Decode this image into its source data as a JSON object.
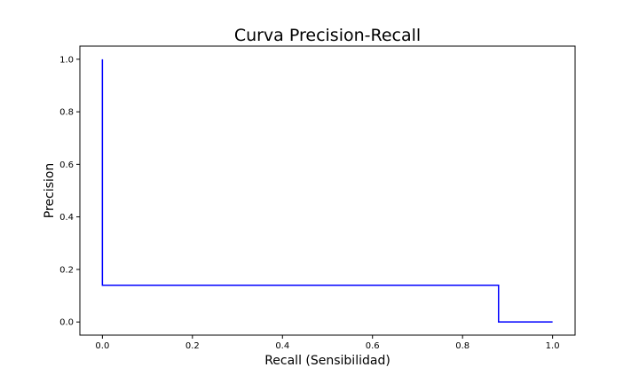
{
  "chart_data": {
    "type": "line",
    "title": "Curva Precision-Recall",
    "xlabel": "Recall (Sensibilidad)",
    "ylabel": "Precision",
    "xlim": [
      -0.05,
      1.05
    ],
    "ylim": [
      -0.05,
      1.05
    ],
    "xticks": [
      0.0,
      0.2,
      0.4,
      0.6,
      0.8,
      1.0
    ],
    "yticks": [
      0.0,
      0.2,
      0.4,
      0.6,
      0.8,
      1.0
    ],
    "xtick_labels": [
      "0.0",
      "0.2",
      "0.4",
      "0.6",
      "0.8",
      "1.0"
    ],
    "ytick_labels": [
      "0.0",
      "0.2",
      "0.4",
      "0.6",
      "0.8",
      "1.0"
    ],
    "grid": false,
    "series": [
      {
        "color": "#0000ff",
        "x": [
          0.0,
          0.0,
          0.88,
          0.88,
          1.0
        ],
        "y": [
          1.0,
          0.14,
          0.14,
          0.0,
          0.0
        ]
      }
    ]
  }
}
